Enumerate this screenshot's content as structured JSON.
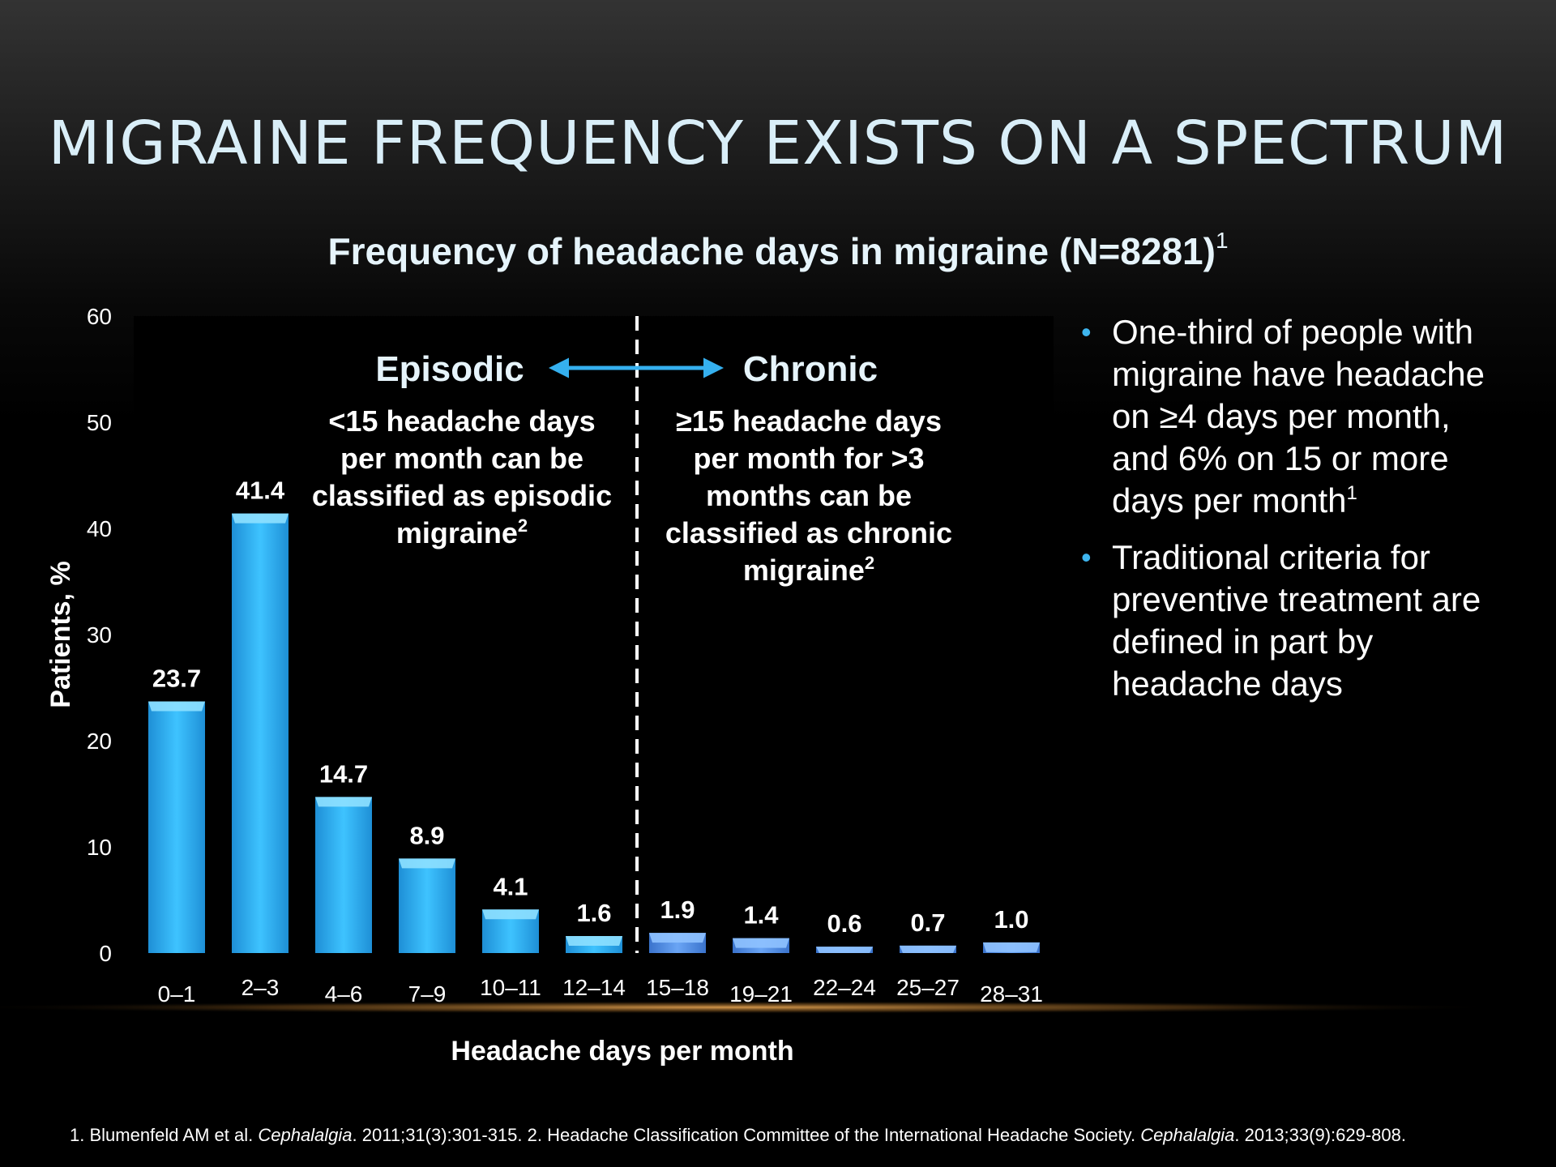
{
  "slide": {
    "title": "MIGRAINE FREQUENCY EXISTS ON A SPECTRUM"
  },
  "chart_data": {
    "type": "bar",
    "title": "Frequency of headache days in migraine (N=8281)",
    "title_superscript": "1",
    "xlabel": "Headache days per month",
    "ylabel": "Patients, %",
    "ylim": [
      0,
      60
    ],
    "yticks": [
      0,
      10,
      20,
      30,
      40,
      50,
      60
    ],
    "categories": [
      "0–1",
      "2–3",
      "4–6",
      "7–9",
      "10–11",
      "12–14",
      "15–18",
      "19–21",
      "22–24",
      "25–27",
      "28–31"
    ],
    "values": [
      23.7,
      41.4,
      14.7,
      8.9,
      4.1,
      1.6,
      1.9,
      1.4,
      0.6,
      0.7,
      1.0
    ],
    "value_labels": [
      "23.7",
      "41.4",
      "14.7",
      "8.9",
      "4.1",
      "1.6",
      "1.9",
      "1.4",
      "0.6",
      "0.7",
      "1.0"
    ],
    "groups": {
      "episodic": {
        "label": "Episodic",
        "lines": [
          "<15 headache days",
          "per month can be",
          "classified as episodic",
          "migraine"
        ],
        "superscript": "2",
        "color": "#2fb2f2"
      },
      "chronic": {
        "label": "Chronic",
        "lines": [
          "≥15 headache days",
          "per month for >3",
          "months can be",
          "classified as chronic",
          "migraine"
        ],
        "superscript": "2",
        "color": "#4f8fe6"
      }
    },
    "arrow_color": "#35b0ef",
    "grid": false,
    "legend": "none"
  },
  "bullets": [
    {
      "lines": [
        "One-third of people with",
        "migraine have headache",
        "on ≥4 days per month,",
        "and 6% on 15 or more",
        "days per month"
      ],
      "superscript": "1"
    },
    {
      "lines": [
        "Traditional criteria for",
        "preventive treatment are",
        "defined in part by",
        "headache days"
      ],
      "superscript": ""
    }
  ],
  "footnote": {
    "ref1_prefix": "1. Blumenfeld AM et al. ",
    "ref1_journal": "Cephalalgia",
    "ref1_suffix": ". 2011;31(3):301-315. 2. Headache Classification Committee of the International Headache Society. ",
    "ref2_journal": "Cephalalgia",
    "ref2_suffix": ". 2013;33(9):629-808."
  }
}
